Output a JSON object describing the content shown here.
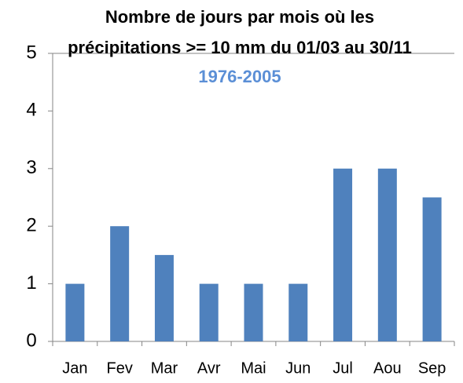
{
  "chart_data": {
    "type": "bar",
    "title": "Nombre de jours par mois où les précipitations >= 10 mm du 01/03 au 30/11",
    "subtitle": "1976-2005",
    "categories": [
      "Jan",
      "Fev",
      "Mar",
      "Avr",
      "Mai",
      "Jun",
      "Jul",
      "Aou",
      "Sep"
    ],
    "values": [
      1,
      2,
      1.5,
      1,
      1,
      1,
      3,
      3,
      2.5
    ],
    "color": "#4f81bd",
    "ylim": [
      0,
      5
    ],
    "yticks": [
      0,
      1,
      2,
      3,
      4,
      5
    ],
    "grid": false
  }
}
